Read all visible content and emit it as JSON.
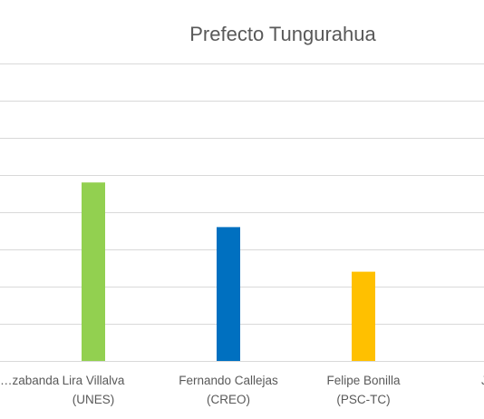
{
  "chart_data": {
    "type": "bar",
    "title": "Prefecto Tungurahua",
    "xlabel": "",
    "ylabel": "",
    "categories": [
      [
        "…zabanda"
      ],
      [
        "Lira Villalva",
        "(UNES)"
      ],
      [
        "Fernando Callejas",
        "(CREO)"
      ],
      [
        "Felipe Bonilla",
        "(PSC-TC)"
      ],
      [
        "J…"
      ]
    ],
    "values": [
      null,
      24,
      18,
      12,
      null
    ],
    "colors": [
      null,
      "#92d050",
      "#0070c0",
      "#ffc000",
      null
    ],
    "ylim": [
      0,
      40
    ],
    "grid": true,
    "legend": "none"
  }
}
